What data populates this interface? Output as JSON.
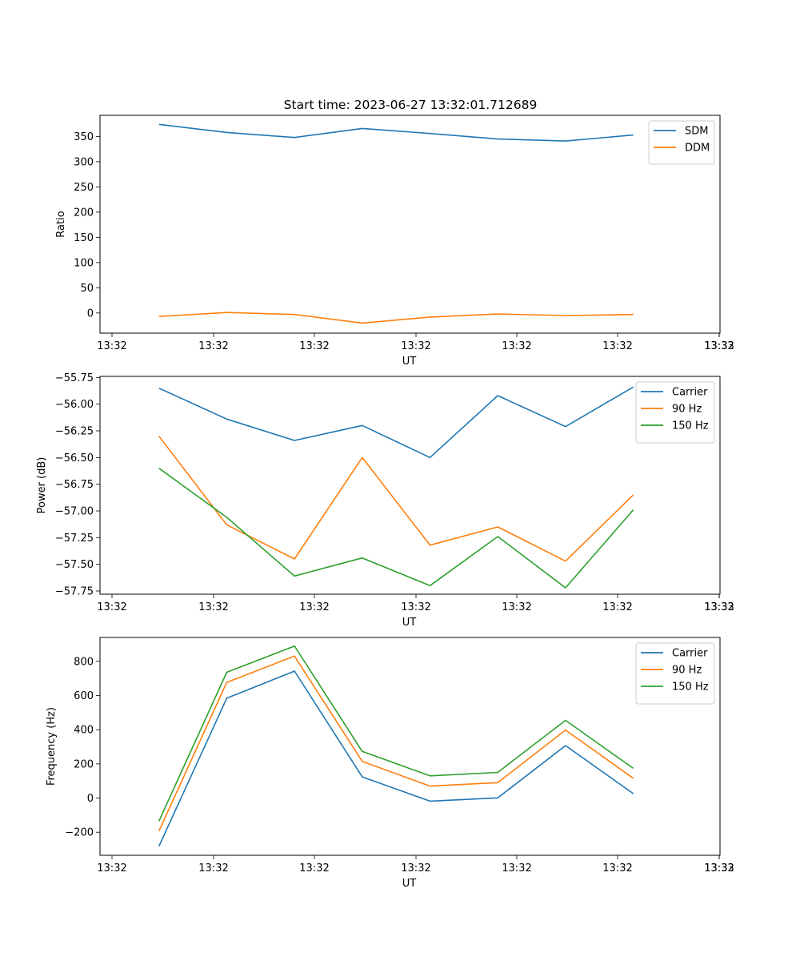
{
  "title": "Start time: 2023-06-27 13:32:01.712689",
  "chart_data": [
    {
      "type": "line",
      "xlabel": "UT",
      "ylabel": "Ratio",
      "x_tick_labels": [
        "13:32",
        "13:32",
        "13:32",
        "13:32",
        "13:32",
        "13:32",
        "13:32",
        "13:33"
      ],
      "ylim": [
        -40,
        392
      ],
      "y_ticks": [
        0,
        50,
        100,
        150,
        200,
        250,
        300,
        350
      ],
      "y_tick_labels": [
        "0",
        "50",
        "100",
        "150",
        "200",
        "250",
        "300",
        "350"
      ],
      "legend_position": "upper-right",
      "x_range": [
        0.63,
        9.78
      ],
      "x": [
        1.5,
        2.5,
        3.5,
        4.5,
        5.5,
        6.5,
        7.5,
        8.5
      ],
      "series": [
        {
          "name": "SDM",
          "color": "#1f77b4",
          "values": [
            374,
            358,
            348,
            366,
            356,
            345,
            341,
            353
          ]
        },
        {
          "name": "DDM",
          "color": "#ff7f0e",
          "values": [
            -7,
            1,
            -3,
            -20,
            -8,
            -2,
            -5,
            -3
          ]
        }
      ]
    },
    {
      "type": "line",
      "xlabel": "UT",
      "ylabel": "Power (dB)",
      "x_tick_labels": [
        "13:32",
        "13:32",
        "13:32",
        "13:32",
        "13:32",
        "13:32",
        "13:32",
        "13:33"
      ],
      "ylim": [
        -57.78,
        -55.74
      ],
      "y_ticks": [
        -57.75,
        -57.5,
        -57.25,
        -57.0,
        -56.75,
        -56.5,
        -56.25,
        -56.0,
        -55.75
      ],
      "y_tick_labels": [
        "−57.75",
        "−57.50",
        "−57.25",
        "−57.00",
        "−56.75",
        "−56.50",
        "−56.25",
        "−56.00",
        "−55.75"
      ],
      "legend_position": "upper-right",
      "x_range": [
        0.63,
        9.78
      ],
      "x": [
        1.5,
        2.5,
        3.5,
        4.5,
        5.5,
        6.5,
        7.5,
        8.5
      ],
      "series": [
        {
          "name": "Carrier",
          "color": "#1f77b4",
          "values": [
            -55.85,
            -56.14,
            -56.34,
            -56.2,
            -56.5,
            -55.92,
            -56.21,
            -55.84
          ]
        },
        {
          "name": "90 Hz",
          "color": "#ff7f0e",
          "values": [
            -56.3,
            -57.13,
            -57.45,
            -56.5,
            -57.32,
            -57.15,
            -57.47,
            -56.85
          ]
        },
        {
          "name": "150 Hz",
          "color": "#2ca02c",
          "values": [
            -56.6,
            -57.06,
            -57.61,
            -57.44,
            -57.7,
            -57.24,
            -57.72,
            -56.99
          ]
        }
      ]
    },
    {
      "type": "line",
      "xlabel": "UT",
      "ylabel": "Frequency (Hz)",
      "x_tick_labels": [
        "13:32",
        "13:32",
        "13:32",
        "13:32",
        "13:32",
        "13:32",
        "13:32",
        "13:33"
      ],
      "ylim": [
        -335,
        940
      ],
      "y_ticks": [
        -200,
        0,
        200,
        400,
        600,
        800
      ],
      "y_tick_labels": [
        "−200",
        "0",
        "200",
        "400",
        "600",
        "800"
      ],
      "legend_position": "upper-right",
      "x_range": [
        0.63,
        9.78
      ],
      "x": [
        1.5,
        2.5,
        3.5,
        4.5,
        5.5,
        6.5,
        7.5,
        8.5
      ],
      "series": [
        {
          "name": "Carrier",
          "color": "#1f77b4",
          "values": [
            -282,
            584,
            743,
            124,
            -18,
            1,
            307,
            26
          ]
        },
        {
          "name": "90 Hz",
          "color": "#ff7f0e",
          "values": [
            -193,
            677,
            831,
            215,
            70,
            90,
            398,
            116
          ]
        },
        {
          "name": "150 Hz",
          "color": "#2ca02c",
          "values": [
            -135,
            736,
            890,
            273,
            130,
            150,
            455,
            174
          ]
        }
      ]
    }
  ]
}
